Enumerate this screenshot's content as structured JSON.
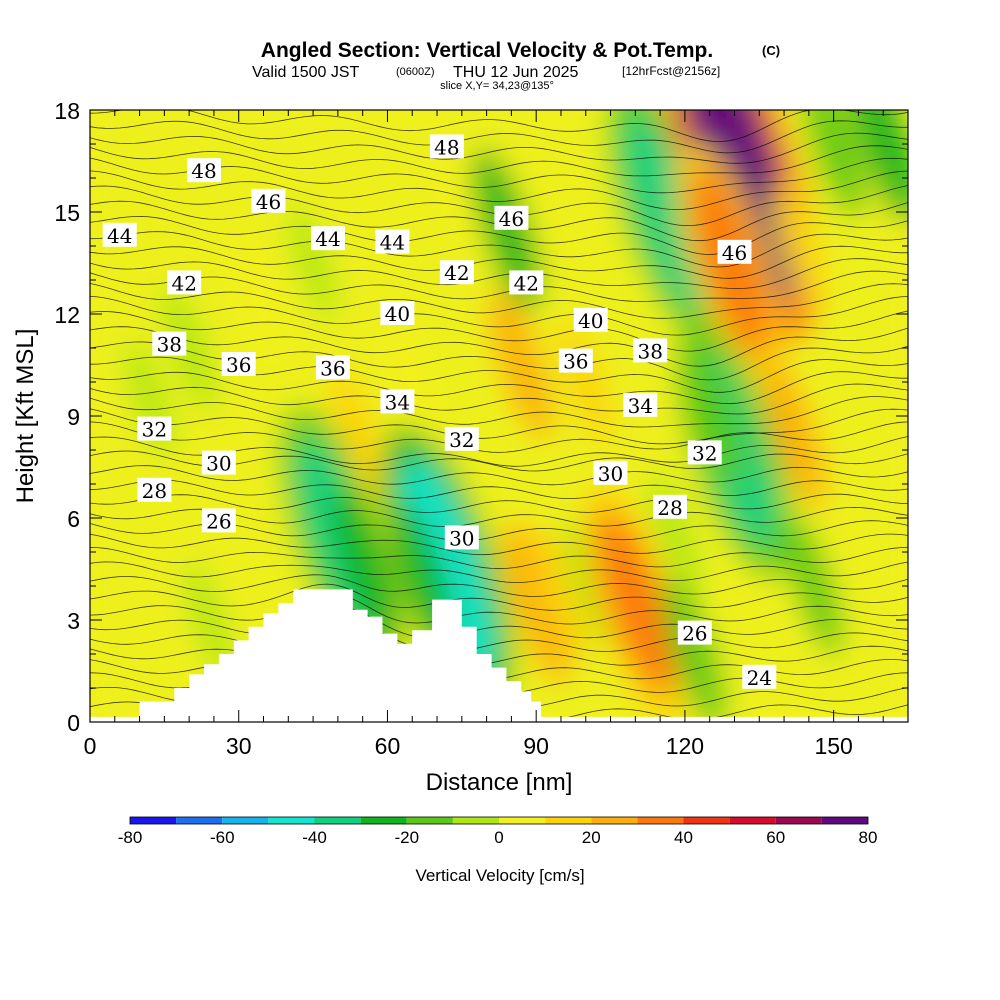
{
  "header": {
    "title": "Angled Section: Vertical Velocity & Pot.Temp.",
    "title_suffix": "(C)",
    "valid_prefix": "Valid 1500 JST",
    "valid_utc": "(0600Z)",
    "valid_date": "THU 12 Jun 2025",
    "forecast_info": "[12hrFcst@2156z]",
    "slice_info": "slice X,Y= 34,23@135°"
  },
  "chart_data": {
    "type": "heatmap",
    "title": "Angled Section: Vertical Velocity & Pot.Temp.",
    "xlabel": "Distance [nm]",
    "ylabel": "Height [Kft MSL]",
    "xlim": [
      0,
      165
    ],
    "ylim": [
      0,
      18
    ],
    "x_ticks": [
      0,
      30,
      60,
      90,
      120,
      150
    ],
    "y_ticks": [
      0,
      3,
      6,
      9,
      12,
      15,
      18
    ],
    "colorbar": {
      "label": "Vertical Velocity [cm/s]",
      "ticks": [
        -80,
        -60,
        -40,
        -20,
        0,
        20,
        40,
        60,
        80
      ],
      "bounds": [
        -80,
        80
      ],
      "colors": [
        "#1818ee",
        "#1e6ef2",
        "#14b4f0",
        "#12e6d2",
        "#0ed282",
        "#10b41c",
        "#5ac814",
        "#aee612",
        "#f2f020",
        "#fcd20a",
        "#fcae0a",
        "#fc780e",
        "#f03414",
        "#d60c2a",
        "#9c0852",
        "#600a80"
      ]
    },
    "velocity_features": [
      {
        "x": 45,
        "y": 13.5,
        "w": -5
      },
      {
        "x": 34,
        "y": 12.5,
        "w": 8
      },
      {
        "x": 50,
        "y": 5.5,
        "w": -40
      },
      {
        "x": 56,
        "y": 4.5,
        "w": -25
      },
      {
        "x": 54,
        "y": 8.5,
        "w": 12
      },
      {
        "x": 72,
        "y": 4.5,
        "w": -50
      },
      {
        "x": 67,
        "y": 4.2,
        "w": -25
      },
      {
        "x": 76,
        "y": 15.5,
        "w": 8
      },
      {
        "x": 84,
        "y": 14.5,
        "w": -25
      },
      {
        "x": 87,
        "y": 10.5,
        "w": 20
      },
      {
        "x": 90,
        "y": 3.5,
        "w": 25
      },
      {
        "x": 95,
        "y": 3.8,
        "w": 12
      },
      {
        "x": 101,
        "y": 4.0,
        "w": -10
      },
      {
        "x": 110,
        "y": 3.5,
        "w": 35
      },
      {
        "x": 118,
        "y": 5.5,
        "w": -8
      },
      {
        "x": 122,
        "y": 2.0,
        "w": -20
      },
      {
        "x": 116,
        "y": 15.0,
        "w": -40
      },
      {
        "x": 131,
        "y": 16.2,
        "w": 70
      },
      {
        "x": 129,
        "y": 13.5,
        "w": 35
      },
      {
        "x": 130,
        "y": 8.0,
        "w": -40
      },
      {
        "x": 126,
        "y": 9.0,
        "w": -15
      },
      {
        "x": 142,
        "y": 8.5,
        "w": 20
      },
      {
        "x": 143,
        "y": 14.0,
        "w": 10
      },
      {
        "x": 146,
        "y": 4.0,
        "w": -15
      },
      {
        "x": 150,
        "y": 17.0,
        "w": -20
      },
      {
        "x": 160,
        "y": 17.2,
        "w": -30
      },
      {
        "x": 20,
        "y": 11.0,
        "w": -10
      },
      {
        "x": 12,
        "y": 9.5,
        "w": -5
      },
      {
        "x": 24,
        "y": 3.0,
        "w": -5
      },
      {
        "x": 100,
        "y": 10.0,
        "w": 10
      },
      {
        "x": 65,
        "y": 10.0,
        "w": 8
      }
    ],
    "potential_temperature_contour_labels": [
      {
        "value": "48",
        "x": 23,
        "y": 16.2
      },
      {
        "value": "48",
        "x": 72,
        "y": 16.9
      },
      {
        "value": "46",
        "x": 36,
        "y": 15.3
      },
      {
        "value": "46",
        "x": 85,
        "y": 14.8
      },
      {
        "value": "46",
        "x": 130,
        "y": 13.8
      },
      {
        "value": "44",
        "x": 6,
        "y": 14.3
      },
      {
        "value": "44",
        "x": 48,
        "y": 14.2
      },
      {
        "value": "44",
        "x": 61,
        "y": 14.1
      },
      {
        "value": "42",
        "x": 19,
        "y": 12.9
      },
      {
        "value": "42",
        "x": 74,
        "y": 13.2
      },
      {
        "value": "42",
        "x": 88,
        "y": 12.9
      },
      {
        "value": "40",
        "x": 62,
        "y": 12.0
      },
      {
        "value": "40",
        "x": 101,
        "y": 11.8
      },
      {
        "value": "38",
        "x": 16,
        "y": 11.1
      },
      {
        "value": "38",
        "x": 113,
        "y": 10.9
      },
      {
        "value": "36",
        "x": 30,
        "y": 10.5
      },
      {
        "value": "36",
        "x": 49,
        "y": 10.4
      },
      {
        "value": "36",
        "x": 98,
        "y": 10.6
      },
      {
        "value": "34",
        "x": 62,
        "y": 9.4
      },
      {
        "value": "34",
        "x": 111,
        "y": 9.3
      },
      {
        "value": "32",
        "x": 13,
        "y": 8.6
      },
      {
        "value": "32",
        "x": 75,
        "y": 8.3
      },
      {
        "value": "32",
        "x": 124,
        "y": 7.9
      },
      {
        "value": "30",
        "x": 26,
        "y": 7.6
      },
      {
        "value": "30",
        "x": 75,
        "y": 5.4
      },
      {
        "value": "30",
        "x": 105,
        "y": 7.3
      },
      {
        "value": "28",
        "x": 13,
        "y": 6.8
      },
      {
        "value": "28",
        "x": 117,
        "y": 6.3
      },
      {
        "value": "26",
        "x": 26,
        "y": 5.9
      },
      {
        "value": "26",
        "x": 122,
        "y": 2.6
      },
      {
        "value": "24",
        "x": 135,
        "y": 1.3
      }
    ],
    "terrain_profile": [
      [
        10,
        0.6
      ],
      [
        17,
        1.0
      ],
      [
        20,
        1.4
      ],
      [
        23,
        1.7
      ],
      [
        26,
        2.0
      ],
      [
        29,
        2.4
      ],
      [
        32,
        2.8
      ],
      [
        35,
        3.2
      ],
      [
        38,
        3.5
      ],
      [
        41,
        3.9
      ],
      [
        51,
        3.9
      ],
      [
        53,
        3.3
      ],
      [
        56,
        3.1
      ],
      [
        59,
        2.6
      ],
      [
        62,
        2.3
      ],
      [
        65,
        2.7
      ],
      [
        69,
        3.6
      ],
      [
        74,
        3.6
      ],
      [
        75,
        2.8
      ],
      [
        78,
        2.0
      ],
      [
        81,
        1.6
      ],
      [
        84,
        1.2
      ],
      [
        87,
        0.9
      ],
      [
        89,
        0.6
      ],
      [
        91,
        0.3
      ]
    ]
  }
}
